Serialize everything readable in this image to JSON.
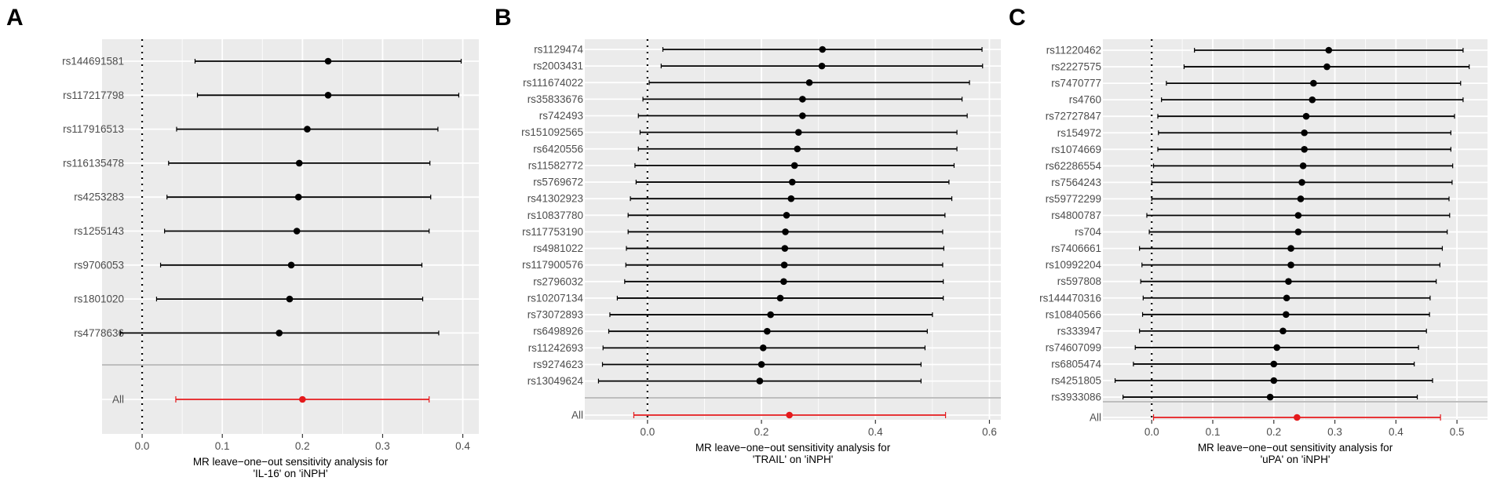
{
  "chart_data": [
    {
      "type": "forest",
      "panel_label": "A",
      "xlabel_line1": "MR leave−one−out sensitivity analysis for",
      "xlabel_line2": "'IL-16' on 'iNPH'",
      "xlim": [
        -0.05,
        0.42
      ],
      "xticks": [
        0.0,
        0.1,
        0.2,
        0.3,
        0.4
      ],
      "xtick_labels": [
        "0.0",
        "0.1",
        "0.2",
        "0.3",
        "0.4"
      ],
      "snps": [
        {
          "label": "rs144691581",
          "b": 0.232,
          "lo": 0.066,
          "hi": 0.398
        },
        {
          "label": "rs117217798",
          "b": 0.232,
          "lo": 0.069,
          "hi": 0.395
        },
        {
          "label": "rs117916513",
          "b": 0.206,
          "lo": 0.043,
          "hi": 0.369
        },
        {
          "label": "rs116135478",
          "b": 0.196,
          "lo": 0.033,
          "hi": 0.359
        },
        {
          "label": "rs4253283",
          "b": 0.195,
          "lo": 0.031,
          "hi": 0.36
        },
        {
          "label": "rs1255143",
          "b": 0.193,
          "lo": 0.028,
          "hi": 0.358
        },
        {
          "label": "rs9706053",
          "b": 0.186,
          "lo": 0.023,
          "hi": 0.349
        },
        {
          "label": "rs1801020",
          "b": 0.184,
          "lo": 0.018,
          "hi": 0.35
        },
        {
          "label": "rs4778636",
          "b": 0.171,
          "lo": -0.027,
          "hi": 0.37
        }
      ],
      "all": {
        "label": "All",
        "b": 0.2,
        "lo": 0.042,
        "hi": 0.358
      }
    },
    {
      "type": "forest",
      "panel_label": "B",
      "xlabel_line1": "MR leave−one−out sensitivity analysis for",
      "xlabel_line2": "'TRAIL' on 'iNPH'",
      "xlim": [
        -0.11,
        0.62
      ],
      "xticks": [
        0.0,
        0.2,
        0.4,
        0.6
      ],
      "xtick_labels": [
        "0.0",
        "0.2",
        "0.4",
        "0.6"
      ],
      "snps": [
        {
          "label": "rs1129474",
          "b": 0.307,
          "lo": 0.027,
          "hi": 0.587
        },
        {
          "label": "rs2003431",
          "b": 0.306,
          "lo": 0.024,
          "hi": 0.588
        },
        {
          "label": "rs111674022",
          "b": 0.284,
          "lo": 0.003,
          "hi": 0.565
        },
        {
          "label": "rs35833676",
          "b": 0.272,
          "lo": -0.008,
          "hi": 0.552
        },
        {
          "label": "rs742493",
          "b": 0.272,
          "lo": -0.016,
          "hi": 0.561
        },
        {
          "label": "rs151092565",
          "b": 0.265,
          "lo": -0.013,
          "hi": 0.543
        },
        {
          "label": "rs6420556",
          "b": 0.263,
          "lo": -0.016,
          "hi": 0.543
        },
        {
          "label": "rs11582772",
          "b": 0.258,
          "lo": -0.022,
          "hi": 0.538
        },
        {
          "label": "rs5769672",
          "b": 0.254,
          "lo": -0.02,
          "hi": 0.529
        },
        {
          "label": "rs41302923",
          "b": 0.252,
          "lo": -0.03,
          "hi": 0.534
        },
        {
          "label": "rs10837780",
          "b": 0.244,
          "lo": -0.034,
          "hi": 0.522
        },
        {
          "label": "rs117753190",
          "b": 0.242,
          "lo": -0.034,
          "hi": 0.518
        },
        {
          "label": "rs4981022",
          "b": 0.241,
          "lo": -0.037,
          "hi": 0.52
        },
        {
          "label": "rs117900576",
          "b": 0.24,
          "lo": -0.038,
          "hi": 0.518
        },
        {
          "label": "rs2796032",
          "b": 0.239,
          "lo": -0.04,
          "hi": 0.519
        },
        {
          "label": "rs10207134",
          "b": 0.233,
          "lo": -0.053,
          "hi": 0.519
        },
        {
          "label": "rs73072893",
          "b": 0.216,
          "lo": -0.066,
          "hi": 0.5
        },
        {
          "label": "rs6498926",
          "b": 0.21,
          "lo": -0.068,
          "hi": 0.491
        },
        {
          "label": "rs11242693",
          "b": 0.203,
          "lo": -0.078,
          "hi": 0.487
        },
        {
          "label": "rs9274623",
          "b": 0.2,
          "lo": -0.079,
          "hi": 0.48
        },
        {
          "label": "rs13049624",
          "b": 0.197,
          "lo": -0.086,
          "hi": 0.48
        }
      ],
      "all": {
        "label": "All",
        "b": 0.249,
        "lo": -0.024,
        "hi": 0.523
      }
    },
    {
      "type": "forest",
      "panel_label": "C",
      "xlabel_line1": "MR leave−one−out sensitivity analysis for",
      "xlabel_line2": "'uPA' on 'iNPH'",
      "xlim": [
        -0.08,
        0.55
      ],
      "xticks": [
        0.0,
        0.1,
        0.2,
        0.3,
        0.4,
        0.5
      ],
      "xtick_labels": [
        "0.0",
        "0.1",
        "0.2",
        "0.3",
        "0.4",
        "0.5"
      ],
      "snps": [
        {
          "label": "rs11220462",
          "b": 0.29,
          "lo": 0.07,
          "hi": 0.51
        },
        {
          "label": "rs2227575",
          "b": 0.287,
          "lo": 0.053,
          "hi": 0.52
        },
        {
          "label": "rs7470777",
          "b": 0.265,
          "lo": 0.024,
          "hi": 0.506
        },
        {
          "label": "rs4760",
          "b": 0.263,
          "lo": 0.016,
          "hi": 0.51
        },
        {
          "label": "rs72727847",
          "b": 0.253,
          "lo": 0.01,
          "hi": 0.496
        },
        {
          "label": "rs154972",
          "b": 0.25,
          "lo": 0.011,
          "hi": 0.49
        },
        {
          "label": "rs1074669",
          "b": 0.25,
          "lo": 0.01,
          "hi": 0.49
        },
        {
          "label": "rs62286554",
          "b": 0.248,
          "lo": 0.003,
          "hi": 0.493
        },
        {
          "label": "rs7564243",
          "b": 0.246,
          "lo": 0.0,
          "hi": 0.492
        },
        {
          "label": "rs59772299",
          "b": 0.244,
          "lo": 0.0,
          "hi": 0.487
        },
        {
          "label": "rs4800787",
          "b": 0.24,
          "lo": -0.008,
          "hi": 0.488
        },
        {
          "label": "rs704",
          "b": 0.24,
          "lo": -0.004,
          "hi": 0.484
        },
        {
          "label": "rs7406661",
          "b": 0.228,
          "lo": -0.02,
          "hi": 0.476
        },
        {
          "label": "rs10992204",
          "b": 0.228,
          "lo": -0.016,
          "hi": 0.472
        },
        {
          "label": "rs597808",
          "b": 0.224,
          "lo": -0.018,
          "hi": 0.466
        },
        {
          "label": "rs144470316",
          "b": 0.221,
          "lo": -0.014,
          "hi": 0.456
        },
        {
          "label": "rs10840566",
          "b": 0.22,
          "lo": -0.015,
          "hi": 0.455
        },
        {
          "label": "rs333947",
          "b": 0.215,
          "lo": -0.02,
          "hi": 0.45
        },
        {
          "label": "rs74607099",
          "b": 0.205,
          "lo": -0.027,
          "hi": 0.437
        },
        {
          "label": "rs6805474",
          "b": 0.2,
          "lo": -0.03,
          "hi": 0.43
        },
        {
          "label": "rs4251805",
          "b": 0.2,
          "lo": -0.06,
          "hi": 0.46
        },
        {
          "label": "rs3933086",
          "b": 0.194,
          "lo": -0.047,
          "hi": 0.435
        }
      ],
      "all": {
        "label": "All",
        "b": 0.238,
        "lo": 0.003,
        "hi": 0.473
      }
    }
  ],
  "colors": {
    "panel_background": "#ebebeb",
    "grid": "#ffffff",
    "point": "#000000",
    "all_point": "#e41a1c",
    "separator": "#bebebe",
    "label_text": "#4d4d4d"
  }
}
